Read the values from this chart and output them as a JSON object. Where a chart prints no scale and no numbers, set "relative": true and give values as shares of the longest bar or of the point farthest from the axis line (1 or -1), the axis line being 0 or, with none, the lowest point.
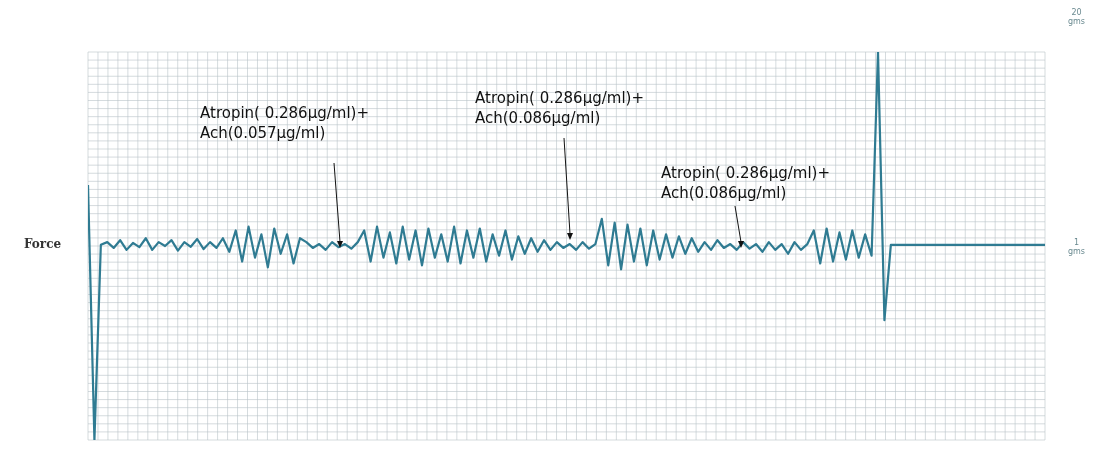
{
  "chart_data": {
    "type": "line",
    "relative": true,
    "ylabel": "Force",
    "grid": true,
    "marker": "none",
    "annotations": [
      "Atropin( 0.286µg/ml)+\nAch(0.057µg/ml)",
      "Atropin( 0.286µg/ml)+\nAch(0.086µg/ml)",
      "Atropin( 0.286µg/ml)+\nAch(0.086µg/ml)",
      "20\ngms",
      "1\ngms"
    ],
    "categories": [
      null,
      null,
      null,
      null,
      null,
      null,
      null,
      null,
      null,
      null,
      null,
      null,
      null,
      null,
      null,
      null,
      null,
      null,
      null,
      null,
      null,
      null,
      null,
      null,
      null,
      null,
      null,
      null,
      null,
      null,
      null,
      null,
      null,
      null,
      null,
      null,
      null,
      null,
      null,
      null,
      null,
      null,
      null,
      null,
      null,
      null,
      null,
      null,
      null,
      null,
      null,
      null,
      null,
      null,
      null,
      null,
      null,
      null,
      null,
      null,
      null,
      null,
      null,
      null,
      null,
      null,
      null,
      null,
      null,
      null,
      null,
      null,
      null,
      null,
      null,
      null,
      null,
      null,
      null,
      null,
      null,
      null,
      null,
      null,
      null,
      null,
      null,
      null,
      null,
      null,
      null,
      null,
      null,
      null,
      null,
      null,
      null,
      null,
      null,
      null,
      null,
      null,
      null,
      null,
      null,
      null,
      null,
      null,
      null,
      null,
      null,
      null,
      null,
      null,
      null,
      null,
      null,
      null,
      null,
      null,
      null,
      null,
      null,
      null,
      null,
      null,
      null,
      null,
      null,
      null,
      null,
      null,
      null,
      null,
      null,
      null,
      null,
      null,
      null,
      null,
      null,
      null,
      null,
      null,
      null,
      null,
      null,
      null,
      null,
      null
    ],
    "series": [
      {
        "color": "#2f7b92",
        "values": [
          0.657,
          0,
          0.503,
          0.51,
          0.495,
          0.515,
          0.49,
          0.508,
          0.497,
          0.52,
          0.49,
          0.51,
          0.5,
          0.515,
          0.488,
          0.51,
          0.498,
          0.518,
          0.492,
          0.51,
          0.495,
          0.52,
          0.485,
          0.54,
          0.46,
          0.55,
          0.47,
          0.53,
          0.445,
          0.545,
          0.48,
          0.53,
          0.455,
          0.52,
          0.51,
          0.495,
          0.505,
          0.49,
          0.51,
          0.497,
          0.505,
          0.493,
          0.51,
          0.54,
          0.46,
          0.55,
          0.47,
          0.535,
          0.455,
          0.55,
          0.465,
          0.54,
          0.45,
          0.545,
          0.47,
          0.53,
          0.46,
          0.55,
          0.455,
          0.54,
          0.47,
          0.545,
          0.46,
          0.53,
          0.475,
          0.54,
          0.465,
          0.525,
          0.48,
          0.52,
          0.485,
          0.515,
          0.49,
          0.51,
          0.495,
          0.505,
          0.49,
          0.51,
          0.493,
          0.505,
          0.57,
          0.45,
          0.56,
          0.44,
          0.555,
          0.46,
          0.545,
          0.45,
          0.54,
          0.465,
          0.53,
          0.47,
          0.525,
          0.48,
          0.52,
          0.485,
          0.51,
          0.49,
          0.515,
          0.495,
          0.505,
          0.49,
          0.51,
          0.493,
          0.505,
          0.485,
          0.51,
          0.49,
          0.505,
          0.48,
          0.51,
          0.49,
          0.505,
          0.54,
          0.455,
          0.545,
          0.46,
          0.535,
          0.465,
          0.54,
          0.47,
          0.53,
          0.475,
          1,
          0.309,
          0.503,
          0.503,
          0.503,
          0.503,
          0.503,
          0.503,
          0.503,
          0.503,
          0.503,
          0.503,
          0.503,
          0.503,
          0.503,
          0.503,
          0.503,
          0.503,
          0.503,
          0.503,
          0.503,
          0.503,
          0.503,
          0.503,
          0.503,
          0.503,
          0.503
        ]
      }
    ]
  }
}
